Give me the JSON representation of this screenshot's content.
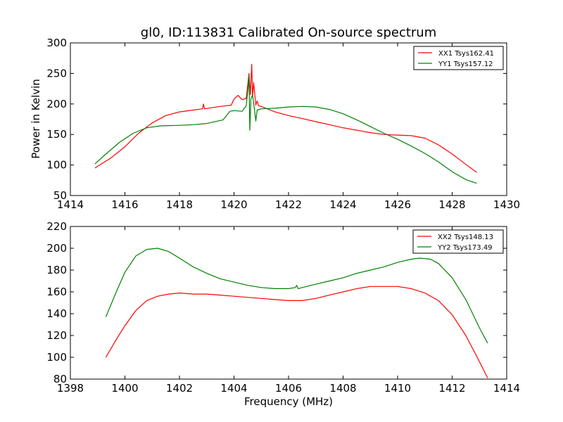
{
  "title": "gl0, ID:113831 Calibrated On-source spectrum",
  "colors": {
    "xx": "#ff0000",
    "yy": "#008000"
  },
  "chart_data": [
    {
      "type": "line",
      "title": "gl0, ID:113831 Calibrated On-source spectrum",
      "xlabel": "",
      "ylabel": "Power in Kelvin",
      "xlim": [
        1414,
        1430
      ],
      "ylim": [
        50,
        300
      ],
      "xticks": [
        1414,
        1416,
        1418,
        1420,
        1422,
        1424,
        1426,
        1428,
        1430
      ],
      "yticks": [
        50,
        100,
        150,
        200,
        250,
        300
      ],
      "grid": false,
      "legend_position": "top-right",
      "series": [
        {
          "name": "XX1 Tsys162.41",
          "color": "#ff0000",
          "points": [
            [
              1414.9,
              95
            ],
            [
              1415.5,
              112
            ],
            [
              1416.0,
              130
            ],
            [
              1416.5,
              152
            ],
            [
              1417.0,
              169
            ],
            [
              1417.5,
              181
            ],
            [
              1418.0,
              187
            ],
            [
              1418.5,
              190
            ],
            [
              1418.85,
              192
            ],
            [
              1418.88,
              200
            ],
            [
              1418.92,
              192
            ],
            [
              1419.5,
              196
            ],
            [
              1419.9,
              198
            ],
            [
              1420.0,
              208
            ],
            [
              1420.15,
              214
            ],
            [
              1420.3,
              207
            ],
            [
              1420.45,
              209
            ],
            [
              1420.55,
              250
            ],
            [
              1420.6,
              215
            ],
            [
              1420.65,
              265
            ],
            [
              1420.68,
              212
            ],
            [
              1420.72,
              235
            ],
            [
              1420.8,
              198
            ],
            [
              1420.85,
              205
            ],
            [
              1420.9,
              197
            ],
            [
              1421.0,
              196
            ],
            [
              1421.5,
              187
            ],
            [
              1422.0,
              181
            ],
            [
              1422.5,
              176
            ],
            [
              1423.0,
              171
            ],
            [
              1423.5,
              166
            ],
            [
              1424.0,
              161
            ],
            [
              1424.5,
              157
            ],
            [
              1425.0,
              153
            ],
            [
              1425.5,
              150
            ],
            [
              1426.0,
              149
            ],
            [
              1426.5,
              148
            ],
            [
              1427.0,
              144
            ],
            [
              1427.5,
              133
            ],
            [
              1428.0,
              118
            ],
            [
              1428.5,
              101
            ],
            [
              1428.9,
              88
            ]
          ]
        },
        {
          "name": "YY1 Tsys157.12",
          "color": "#008000",
          "points": [
            [
              1414.9,
              102
            ],
            [
              1415.3,
              118
            ],
            [
              1415.8,
              137
            ],
            [
              1416.3,
              152
            ],
            [
              1416.8,
              161
            ],
            [
              1417.3,
              164
            ],
            [
              1418.0,
              165
            ],
            [
              1418.5,
              166
            ],
            [
              1419.0,
              168
            ],
            [
              1419.6,
              174
            ],
            [
              1419.85,
              188
            ],
            [
              1420.0,
              189
            ],
            [
              1420.3,
              188
            ],
            [
              1420.45,
              197
            ],
            [
              1420.52,
              228
            ],
            [
              1420.55,
              245
            ],
            [
              1420.58,
              157
            ],
            [
              1420.62,
              208
            ],
            [
              1420.68,
              215
            ],
            [
              1420.75,
              191
            ],
            [
              1420.8,
              172
            ],
            [
              1420.85,
              190
            ],
            [
              1421.0,
              192
            ],
            [
              1421.5,
              193
            ],
            [
              1422.0,
              195
            ],
            [
              1422.5,
              196
            ],
            [
              1423.0,
              195
            ],
            [
              1423.5,
              191
            ],
            [
              1424.0,
              184
            ],
            [
              1424.5,
              174
            ],
            [
              1425.0,
              163
            ],
            [
              1425.5,
              152
            ],
            [
              1426.0,
              142
            ],
            [
              1426.5,
              131
            ],
            [
              1427.0,
              119
            ],
            [
              1427.5,
              105
            ],
            [
              1428.0,
              89
            ],
            [
              1428.5,
              76
            ],
            [
              1428.9,
              70
            ]
          ]
        }
      ]
    },
    {
      "type": "line",
      "title": "",
      "xlabel": "Frequency (MHz)",
      "ylabel": "",
      "xlim": [
        1398,
        1414
      ],
      "ylim": [
        80,
        220
      ],
      "xticks": [
        1398,
        1400,
        1402,
        1404,
        1406,
        1408,
        1410,
        1412,
        1414
      ],
      "yticks": [
        80,
        100,
        120,
        140,
        160,
        180,
        200,
        220
      ],
      "grid": false,
      "legend_position": "top-right",
      "series": [
        {
          "name": "XX2 Tsys148.13",
          "color": "#ff0000",
          "points": [
            [
              1399.3,
              100
            ],
            [
              1399.7,
              117
            ],
            [
              1400.0,
              129
            ],
            [
              1400.4,
              143
            ],
            [
              1400.8,
              152
            ],
            [
              1401.2,
              156
            ],
            [
              1401.6,
              158
            ],
            [
              1402.0,
              159
            ],
            [
              1402.5,
              158
            ],
            [
              1403.0,
              158
            ],
            [
              1403.5,
              157
            ],
            [
              1404.0,
              156
            ],
            [
              1404.5,
              155
            ],
            [
              1405.0,
              154
            ],
            [
              1405.5,
              153
            ],
            [
              1406.0,
              152
            ],
            [
              1406.5,
              152
            ],
            [
              1407.0,
              154
            ],
            [
              1407.5,
              157
            ],
            [
              1408.0,
              160
            ],
            [
              1408.5,
              163
            ],
            [
              1409.0,
              165
            ],
            [
              1409.5,
              165
            ],
            [
              1410.0,
              165
            ],
            [
              1410.5,
              163
            ],
            [
              1411.0,
              159
            ],
            [
              1411.5,
              152
            ],
            [
              1412.0,
              139
            ],
            [
              1412.5,
              120
            ],
            [
              1413.0,
              96
            ],
            [
              1413.3,
              81
            ]
          ]
        },
        {
          "name": "YY2 Tsys173.49",
          "color": "#008000",
          "points": [
            [
              1399.3,
              137
            ],
            [
              1399.7,
              161
            ],
            [
              1400.0,
              178
            ],
            [
              1400.4,
              193
            ],
            [
              1400.8,
              199
            ],
            [
              1401.2,
              200
            ],
            [
              1401.6,
              197
            ],
            [
              1402.0,
              191
            ],
            [
              1402.5,
              183
            ],
            [
              1403.0,
              177
            ],
            [
              1403.5,
              172
            ],
            [
              1404.0,
              169
            ],
            [
              1404.5,
              166
            ],
            [
              1405.0,
              164
            ],
            [
              1405.5,
              163
            ],
            [
              1406.0,
              163
            ],
            [
              1406.25,
              164
            ],
            [
              1406.3,
              166
            ],
            [
              1406.35,
              163
            ],
            [
              1406.5,
              164
            ],
            [
              1407.0,
              167
            ],
            [
              1407.5,
              170
            ],
            [
              1408.0,
              173
            ],
            [
              1408.5,
              177
            ],
            [
              1409.0,
              180
            ],
            [
              1409.5,
              183
            ],
            [
              1410.0,
              187
            ],
            [
              1410.5,
              190
            ],
            [
              1410.8,
              191
            ],
            [
              1411.2,
              190
            ],
            [
              1411.5,
              186
            ],
            [
              1412.0,
              173
            ],
            [
              1412.5,
              153
            ],
            [
              1413.0,
              127
            ],
            [
              1413.3,
              113
            ]
          ]
        }
      ]
    }
  ]
}
